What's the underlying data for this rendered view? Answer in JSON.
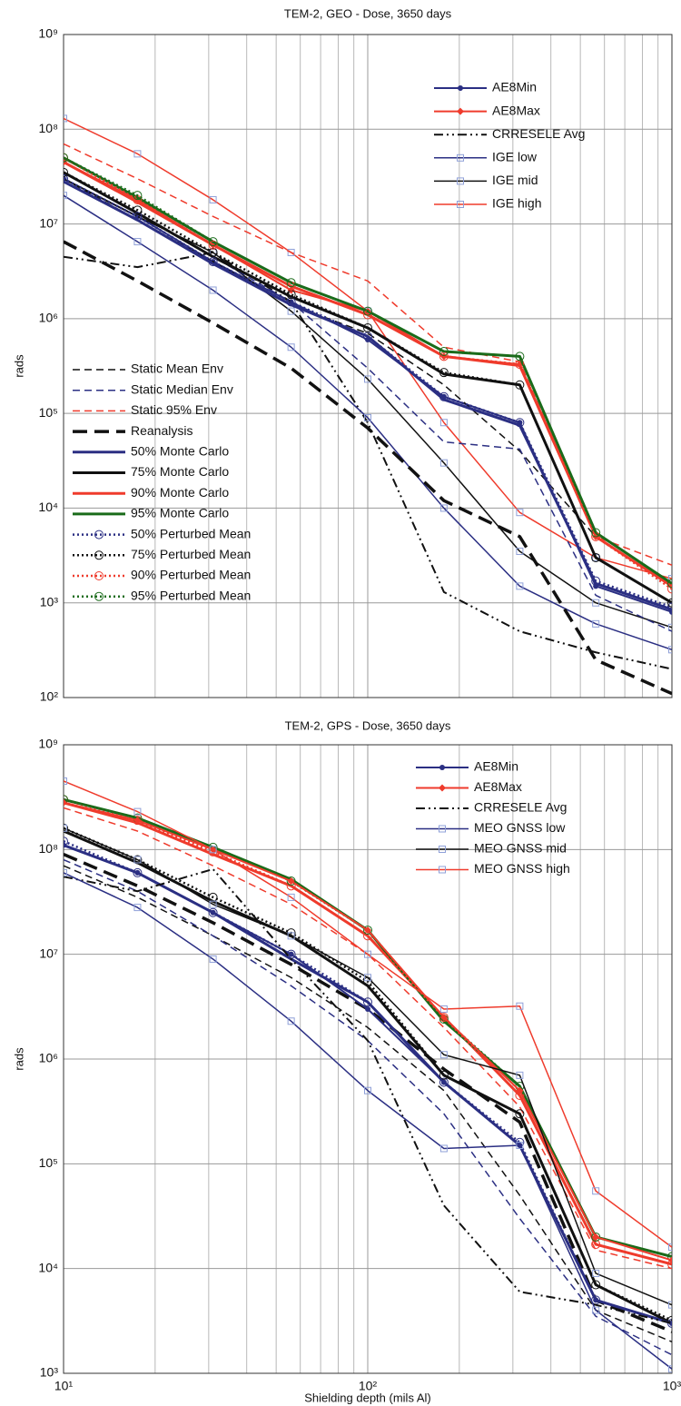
{
  "chart_data": [
    {
      "type": "line",
      "title": "TEM-2, GEO - Dose, 3650 days",
      "ylabel": "rads",
      "log_x": true,
      "log_y": true,
      "grid": true,
      "xlim": [
        10,
        1000
      ],
      "ylim": [
        100,
        1000000000
      ],
      "xticks": [
        10,
        100,
        1000
      ],
      "xminorticks": [
        20,
        30,
        40,
        50,
        60,
        70,
        80,
        90,
        200,
        300,
        400,
        500,
        600,
        700,
        800,
        900
      ],
      "yticks": [
        {
          "value": 100,
          "label": "10²"
        },
        {
          "value": 1000,
          "label": "10³"
        },
        {
          "value": 10000,
          "label": "10⁴"
        },
        {
          "value": 100000,
          "label": "10⁵"
        },
        {
          "value": 1000000,
          "label": "10⁶"
        },
        {
          "value": 10000000,
          "label": "10⁷"
        },
        {
          "value": 100000000,
          "label": "10⁸"
        },
        {
          "value": 1000000000,
          "label": "10⁹"
        }
      ],
      "x": [
        10,
        17.5,
        31,
        56,
        100,
        178,
        316,
        562,
        1000
      ],
      "series": [
        {
          "name": "AE8Min",
          "color": "#2b2f83",
          "style": "solid",
          "marker": "dot",
          "width": 2,
          "legend": "upper right",
          "values": [
            30000000,
            12000000,
            4000000,
            1500000,
            600000,
            150000,
            80000,
            1500,
            800
          ]
        },
        {
          "name": "AE8Max",
          "color": "#ef3b2c",
          "style": "solid",
          "marker": "diamond",
          "width": 2,
          "legend": "upper right",
          "values": [
            45000000,
            18000000,
            6000000,
            2000000,
            1200000,
            400000,
            330000,
            5000,
            1500
          ]
        },
        {
          "name": "CRRESELE Avg",
          "color": "#111111",
          "style": "dashdot",
          "marker": "none",
          "width": 2,
          "legend": "upper right",
          "values": [
            4500000,
            3500000,
            5000000,
            1500000,
            80000,
            1300,
            500,
            300,
            200
          ]
        },
        {
          "name": "IGE low",
          "color": "#2b2f83",
          "style": "solid",
          "marker": "square",
          "width": 1.5,
          "legend": "upper right",
          "values": [
            20000000,
            6500000,
            2000000,
            500000,
            90000,
            10000,
            1500,
            600,
            320
          ]
        },
        {
          "name": "IGE mid",
          "color": "#111111",
          "style": "solid",
          "marker": "square",
          "width": 1.5,
          "legend": "upper right",
          "values": [
            30000000,
            12000000,
            5000000,
            1200000,
            230000,
            30000,
            3500,
            1000,
            550
          ]
        },
        {
          "name": "IGE high",
          "color": "#ef3b2c",
          "style": "solid",
          "marker": "square",
          "width": 1.5,
          "legend": "upper right",
          "values": [
            130000000,
            55000000,
            18000000,
            5000000,
            1200000,
            80000,
            9000,
            3000,
            1800
          ]
        },
        {
          "name": "Static Mean Env",
          "color": "#111111",
          "style": "dashed",
          "marker": "none",
          "width": 1.5,
          "legend": "lower left",
          "values": [
            30000000,
            11000000,
            4000000,
            1400000,
            700000,
            200000,
            40000,
            5000,
            1500
          ]
        },
        {
          "name": "Static Median Env",
          "color": "#2b2f83",
          "style": "dashed",
          "marker": "none",
          "width": 1.5,
          "legend": "lower left",
          "values": [
            35000000,
            13000000,
            4500000,
            1500000,
            300000,
            50000,
            42000,
            1200,
            500
          ]
        },
        {
          "name": "Static 95% Env",
          "color": "#ef3b2c",
          "style": "dashed",
          "marker": "none",
          "width": 1.5,
          "legend": "lower left",
          "values": [
            70000000,
            30000000,
            12000000,
            5000000,
            2500000,
            500000,
            350000,
            5000,
            2500
          ]
        },
        {
          "name": "Reanalysis",
          "color": "#111111",
          "style": "longdash",
          "marker": "none",
          "width": 3.5,
          "legend": "lower left",
          "values": [
            6500000,
            2500000,
            900000,
            300000,
            70000,
            12000,
            5000,
            250,
            110
          ]
        },
        {
          "name": "50% Monte Carlo",
          "color": "#2b2f83",
          "style": "solid",
          "marker": "none",
          "width": 3,
          "legend": "lower left",
          "values": [
            28000000,
            11000000,
            3800000,
            1400000,
            650000,
            140000,
            75000,
            1600,
            850
          ]
        },
        {
          "name": "75% Monte Carlo",
          "color": "#111111",
          "style": "solid",
          "marker": "none",
          "width": 3,
          "legend": "lower left",
          "values": [
            35000000,
            13000000,
            4500000,
            1700000,
            800000,
            260000,
            200000,
            3000,
            1000
          ]
        },
        {
          "name": "90% Monte Carlo",
          "color": "#ef3b2c",
          "style": "solid",
          "marker": "none",
          "width": 3,
          "legend": "lower left",
          "values": [
            45000000,
            17000000,
            6000000,
            2200000,
            1100000,
            400000,
            320000,
            5000,
            1500
          ]
        },
        {
          "name": "95% Monte Carlo",
          "color": "#1a6b1a",
          "style": "solid",
          "marker": "none",
          "width": 3,
          "legend": "lower left",
          "values": [
            50000000,
            19000000,
            6500000,
            2400000,
            1200000,
            450000,
            400000,
            5500,
            1600
          ]
        },
        {
          "name": "50% Perturbed Mean",
          "color": "#2b2f83",
          "style": "dotted",
          "marker": "circle",
          "width": 2.5,
          "legend": "lower left",
          "values": [
            30000000,
            12000000,
            4000000,
            1500000,
            650000,
            150000,
            80000,
            1700,
            900
          ]
        },
        {
          "name": "75% Perturbed Mean",
          "color": "#111111",
          "style": "dotted",
          "marker": "circle",
          "width": 2.5,
          "legend": "lower left",
          "values": [
            35000000,
            14000000,
            5000000,
            1800000,
            800000,
            270000,
            200000,
            3000,
            1000
          ]
        },
        {
          "name": "90% Perturbed Mean",
          "color": "#ef3b2c",
          "style": "dotted",
          "marker": "circle",
          "width": 2.5,
          "legend": "lower left",
          "values": [
            50000000,
            18000000,
            6000000,
            2200000,
            1100000,
            400000,
            330000,
            5000,
            1400
          ]
        },
        {
          "name": "95% Perturbed Mean",
          "color": "#1a6b1a",
          "style": "dotted",
          "marker": "circle",
          "width": 2.5,
          "legend": "lower left",
          "values": [
            50000000,
            20000000,
            6500000,
            2400000,
            1200000,
            450000,
            400000,
            5500,
            1600
          ]
        }
      ]
    },
    {
      "type": "line",
      "title": "TEM-2, GPS - Dose, 3650 days",
      "ylabel": "rads",
      "xlabel": "Shielding depth (mils Al)",
      "log_x": true,
      "log_y": true,
      "grid": true,
      "xlim": [
        10,
        1000
      ],
      "ylim": [
        1000,
        1000000000
      ],
      "xticks": [
        {
          "value": 10,
          "label": "10¹"
        },
        {
          "value": 100,
          "label": "10²"
        },
        {
          "value": 1000,
          "label": "10³"
        }
      ],
      "xminorticks": [
        20,
        30,
        40,
        50,
        60,
        70,
        80,
        90,
        200,
        300,
        400,
        500,
        600,
        700,
        800,
        900
      ],
      "yticks": [
        {
          "value": 1000,
          "label": "10³"
        },
        {
          "value": 10000,
          "label": "10⁴"
        },
        {
          "value": 100000,
          "label": "10⁵"
        },
        {
          "value": 1000000,
          "label": "10⁶"
        },
        {
          "value": 10000000,
          "label": "10⁷"
        },
        {
          "value": 100000000,
          "label": "10⁸"
        },
        {
          "value": 1000000000,
          "label": "10⁹"
        }
      ],
      "x": [
        10,
        17.5,
        31,
        56,
        100,
        178,
        316,
        562,
        1000
      ],
      "series": [
        {
          "color": "#111111",
          "style": "dashed",
          "marker": "none",
          "width": 1.5,
          "values": [
            70000000,
            35000000,
            15000000,
            6000000,
            2000000,
            500000,
            50000,
            4000,
            2000
          ]
        },
        {
          "color": "#2b2f83",
          "style": "dashed",
          "marker": "none",
          "width": 1.5,
          "values": [
            80000000,
            40000000,
            15000000,
            5000000,
            1500000,
            300000,
            30000,
            3500,
            1500
          ]
        },
        {
          "color": "#ef3b2c",
          "style": "dashed",
          "marker": "none",
          "width": 1.5,
          "values": [
            250000000,
            150000000,
            70000000,
            30000000,
            10000000,
            2000000,
            350000,
            15000,
            10000
          ]
        },
        {
          "color": "#111111",
          "style": "longdash",
          "marker": "none",
          "width": 3.5,
          "values": [
            90000000,
            45000000,
            20000000,
            8000000,
            3000000,
            800000,
            250000,
            5000,
            2500
          ]
        },
        {
          "color": "#2b2f83",
          "style": "solid",
          "marker": "none",
          "width": 3,
          "values": [
            110000000,
            60000000,
            25000000,
            9000000,
            3500000,
            600000,
            150000,
            5000,
            3000
          ]
        },
        {
          "color": "#111111",
          "style": "solid",
          "marker": "none",
          "width": 3,
          "values": [
            150000000,
            75000000,
            32000000,
            15000000,
            5000000,
            700000,
            300000,
            7000,
            3000
          ]
        },
        {
          "color": "#ef3b2c",
          "style": "solid",
          "marker": "none",
          "width": 3,
          "values": [
            280000000,
            180000000,
            90000000,
            45000000,
            15000000,
            2500000,
            450000,
            17000,
            11000
          ]
        },
        {
          "color": "#1a6b1a",
          "style": "solid",
          "marker": "none",
          "width": 3,
          "values": [
            300000000,
            200000000,
            105000000,
            52000000,
            17000000,
            2300000,
            550000,
            20000,
            13000
          ]
        },
        {
          "color": "#2b2f83",
          "style": "dotted",
          "marker": "circle",
          "width": 2.5,
          "values": [
            120000000,
            60000000,
            25000000,
            10000000,
            3500000,
            600000,
            160000,
            5000,
            3000
          ]
        },
        {
          "color": "#111111",
          "style": "dotted",
          "marker": "circle",
          "width": 2.5,
          "values": [
            160000000,
            80000000,
            35000000,
            16000000,
            5500000,
            700000,
            300000,
            7000,
            3200
          ]
        },
        {
          "color": "#ef3b2c",
          "style": "dotted",
          "marker": "circle",
          "width": 2.5,
          "values": [
            300000000,
            190000000,
            95000000,
            45000000,
            15000000,
            2500000,
            450000,
            17000,
            11000
          ]
        },
        {
          "color": "#1a6b1a",
          "style": "dotted",
          "marker": "circle",
          "width": 2.5,
          "values": [
            300000000,
            200000000,
            105000000,
            50000000,
            17000000,
            2400000,
            550000,
            20000,
            13000
          ]
        },
        {
          "name": "AE8Min",
          "color": "#2b2f83",
          "style": "solid",
          "marker": "dot",
          "width": 2,
          "legend": "upper right",
          "values": [
            110000000,
            60000000,
            25000000,
            10000000,
            3000000,
            600000,
            150000,
            5000,
            3000
          ]
        },
        {
          "name": "AE8Max",
          "color": "#ef3b2c",
          "style": "solid",
          "marker": "diamond",
          "width": 2,
          "legend": "upper right",
          "values": [
            280000000,
            190000000,
            100000000,
            50000000,
            17000000,
            2500000,
            500000,
            20000,
            12000
          ]
        },
        {
          "name": "CRRESELE Avg",
          "color": "#111111",
          "style": "dashdot",
          "marker": "none",
          "width": 2,
          "legend": "upper right",
          "values": [
            55000000,
            40000000,
            65000000,
            9000000,
            1500000,
            40000,
            6000,
            4500,
            3000
          ]
        },
        {
          "name": "MEO GNSS  low",
          "color": "#2b2f83",
          "style": "solid",
          "marker": "square",
          "width": 1.5,
          "legend": "upper right",
          "values": [
            60000000,
            28000000,
            9000000,
            2300000,
            500000,
            140000,
            150000,
            4000,
            1100
          ]
        },
        {
          "name": "MEO GNSS mid",
          "color": "#111111",
          "style": "solid",
          "marker": "square",
          "width": 1.5,
          "legend": "upper right",
          "values": [
            160000000,
            80000000,
            30000000,
            15000000,
            6000000,
            1100000,
            700000,
            9000,
            4500
          ]
        },
        {
          "name": "MEO GNSS high",
          "color": "#ef3b2c",
          "style": "solid",
          "marker": "square",
          "width": 1.5,
          "legend": "upper right",
          "values": [
            450000000,
            230000000,
            100000000,
            35000000,
            10000000,
            3000000,
            3200000,
            55000,
            16000
          ]
        }
      ]
    }
  ]
}
